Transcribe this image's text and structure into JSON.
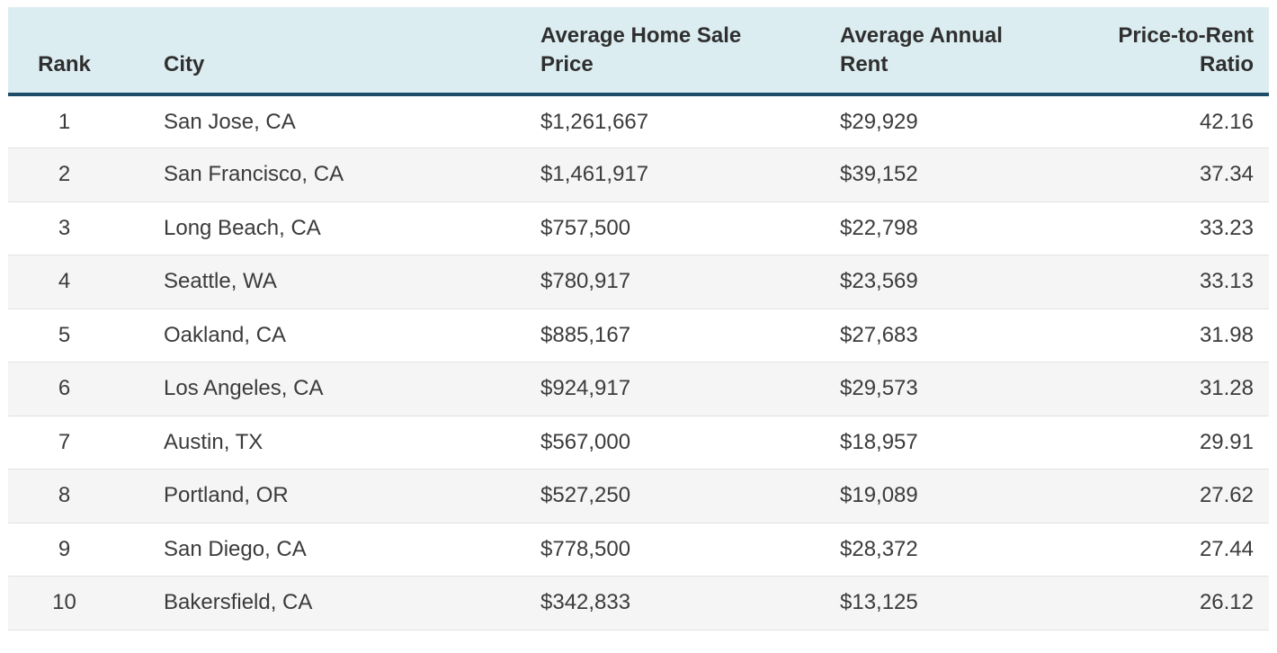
{
  "chart_data": {
    "type": "table",
    "title": "",
    "columns": [
      "Rank",
      "City",
      "Average Home Sale Price",
      "Average Annual Rent",
      "Price-to-Rent Ratio"
    ],
    "column_align": [
      "center",
      "left",
      "left",
      "left",
      "right"
    ],
    "rows": [
      [
        "1",
        "San Jose, CA",
        "$1,261,667",
        "$29,929",
        "42.16"
      ],
      [
        "2",
        "San Francisco, CA",
        "$1,461,917",
        "$39,152",
        "37.34"
      ],
      [
        "3",
        "Long Beach, CA",
        "$757,500",
        "$22,798",
        "33.23"
      ],
      [
        "4",
        "Seattle, WA",
        "$780,917",
        "$23,569",
        "33.13"
      ],
      [
        "5",
        "Oakland, CA",
        "$885,167",
        "$27,683",
        "31.98"
      ],
      [
        "6",
        "Los Angeles, CA",
        "$924,917",
        "$29,573",
        "31.28"
      ],
      [
        "7",
        "Austin, TX",
        "$567,000",
        "$18,957",
        "29.91"
      ],
      [
        "8",
        "Portland, OR",
        "$527,250",
        "$19,089",
        "27.62"
      ],
      [
        "9",
        "San Diego, CA",
        "$778,500",
        "$28,372",
        "27.44"
      ],
      [
        "10",
        "Bakersfield, CA",
        "$342,833",
        "$13,125",
        "26.12"
      ]
    ],
    "layout_hints": {
      "striped_rows": true,
      "header_position": "top",
      "grid": "horizontal-dividers-only"
    }
  },
  "colors": {
    "header_bg": "#dcedf1",
    "header_rule": "#1d4c68",
    "stripe_bg": "#f5f5f5",
    "row_divider": "#e2e2e2",
    "header_text": "#2f2f2f",
    "body_text": "#3b3b3b",
    "page_bg": "#ffffff"
  }
}
